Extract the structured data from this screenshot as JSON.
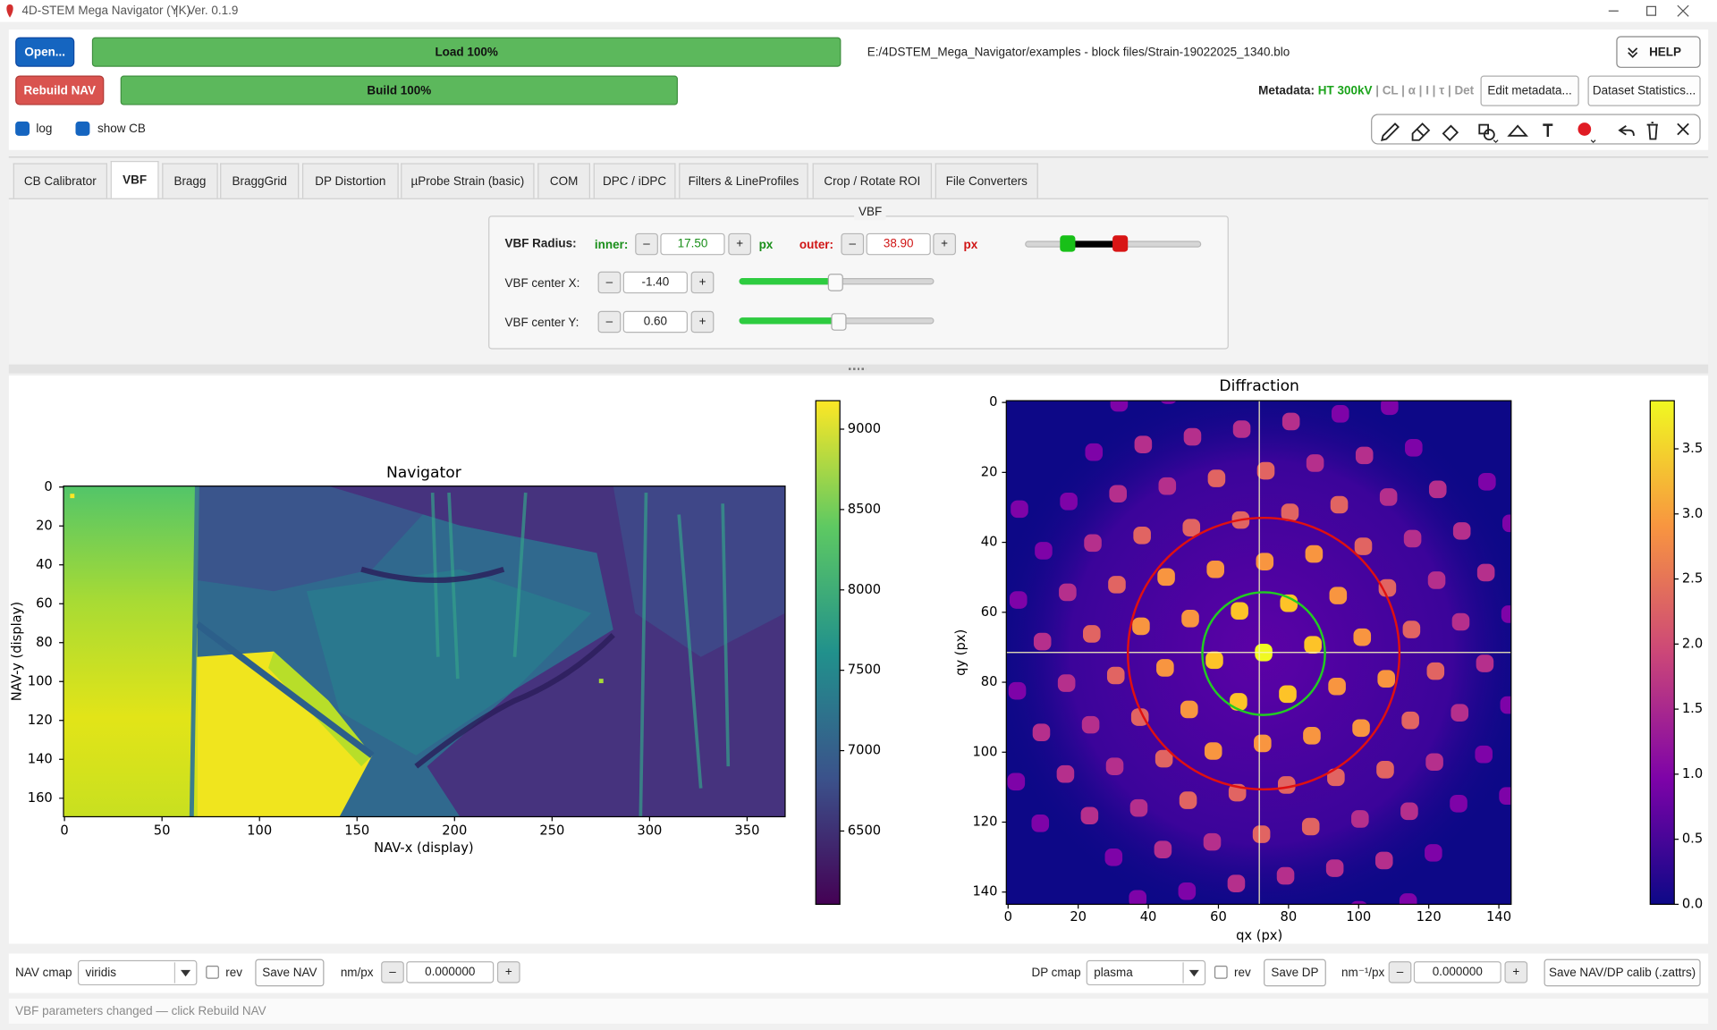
{
  "window": {
    "title": "4D-STEM Mega Navigator (YK)",
    "separator": "|",
    "version": "Ver. 0.1.9"
  },
  "toolbar": {
    "open": "Open...",
    "load_progress": "Load 100%",
    "file_path": "E:/4DSTEM_Mega_Navigator/examples - block files/Strain-19022025_1340.blo",
    "help": "HELP",
    "rebuild": "Rebuild NAV",
    "build_progress": "Build 100%",
    "metadata_label": "Metadata:",
    "metadata_ht": "HT 300kV",
    "metadata_rest": "| CL | α | I | τ | Det",
    "edit_metadata": "Edit metadata...",
    "dataset_statistics": "Dataset Statistics...",
    "log": "log",
    "show_cb": "show CB"
  },
  "tabs": [
    "CB Calibrator",
    "VBF",
    "Bragg",
    "BraggGrid",
    "DP Distortion",
    "µProbe Strain (basic)",
    "COM",
    "DPC / iDPC",
    "Filters & LineProfiles",
    "Crop / Rotate ROI",
    "File Converters"
  ],
  "controls": {
    "step_down": "–",
    "step_up": "+"
  },
  "vbf": {
    "group_title": "VBF",
    "radius_label": "VBF Radius:",
    "inner_label": "inner:",
    "inner": "17.50",
    "inner_unit": "px",
    "outer_label": "outer:",
    "outer": "38.90",
    "outer_unit": "px",
    "center_x_label": "VBF center X:",
    "center_x": "-1.40",
    "center_y_label": "VBF center Y:",
    "center_y": "0.60"
  },
  "navigator": {
    "title": "Navigator",
    "xlabel": "NAV-x (display)",
    "ylabel": "NAV-y (display)",
    "xlim": [
      -0.5,
      369.5
    ],
    "ylim": [
      169.5,
      -0.5
    ],
    "xticks": [
      0,
      50,
      100,
      150,
      200,
      250,
      300,
      350
    ],
    "yticks": [
      0,
      20,
      40,
      60,
      80,
      100,
      120,
      140,
      160
    ],
    "colorbar": {
      "clim": [
        6044,
        9177
      ],
      "ticks": [
        6500,
        7000,
        7500,
        8000,
        8500,
        9000
      ]
    }
  },
  "diffraction": {
    "title": "Diffraction",
    "xlabel": "qx (px)",
    "ylabel": "qy (px)",
    "xlim": [
      -0.5,
      143.5
    ],
    "ylim": [
      143.5,
      -0.5
    ],
    "xticks": [
      0,
      20,
      40,
      60,
      80,
      100,
      120,
      140
    ],
    "yticks": [
      0,
      20,
      40,
      60,
      80,
      100,
      120,
      140
    ],
    "colorbar": {
      "clim": [
        0,
        3.87
      ],
      "ticks": [
        {
          "value": 0,
          "label": "0.0"
        },
        0.5,
        {
          "value": 1,
          "label": "1.0"
        },
        1.5,
        {
          "value": 2,
          "label": "2.0"
        },
        2.5,
        {
          "value": 3,
          "label": "3.0"
        },
        3.5
      ]
    }
  },
  "bottom": {
    "nav_cmap_label": "NAV cmap",
    "nav_cmap": "viridis",
    "rev": "rev",
    "save_nav": "Save NAV",
    "nm_px_label": "nm/px",
    "nm_px": "0.000000",
    "dp_cmap_label": "DP cmap",
    "dp_cmap": "plasma",
    "save_dp": "Save DP",
    "inv_nm_px_label": "nm⁻¹/px",
    "inv_nm_px": "0.000000",
    "save_calib": "Save NAV/DP calib (.zattrs)"
  },
  "status": "VBF parameters changed — click Rebuild NAV"
}
